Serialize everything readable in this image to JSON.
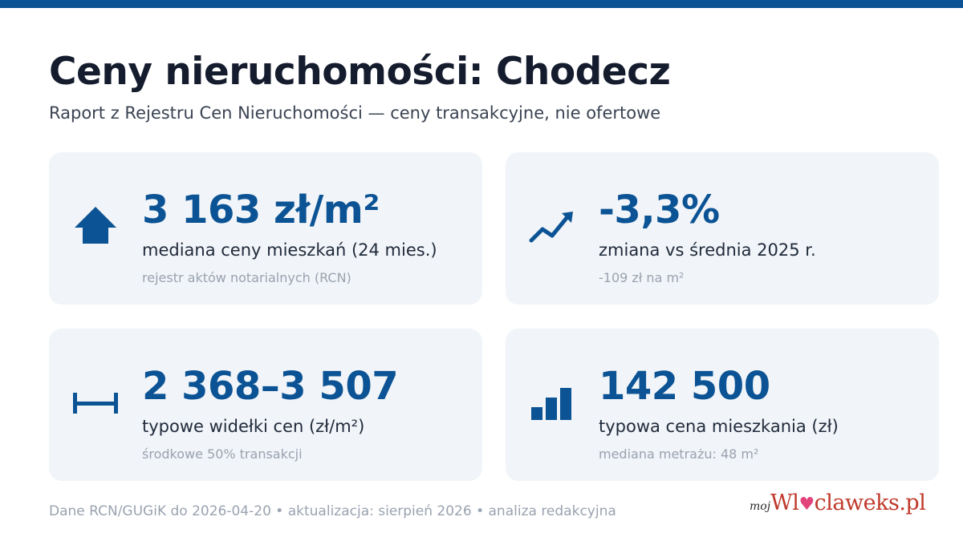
{
  "header": {
    "title": "Ceny nieruchomości: Chodecz",
    "subtitle": "Raport z Rejestru Cen Nieruchomości — ceny transakcyjne, nie ofertowe"
  },
  "cards": [
    {
      "icon": "house-icon",
      "value": "3 163 zł/m²",
      "label": "mediana ceny mieszkań (24 mies.)",
      "note": "rejestr aktów notarialnych (RCN)"
    },
    {
      "icon": "trend-up-icon",
      "value": "-3,3%",
      "label": "zmiana vs średnia 2025 r.",
      "note": "-109 zł na m²"
    },
    {
      "icon": "range-icon",
      "value": "2 368–3 507",
      "label": "typowe widełki cen (zł/m²)",
      "note": "środkowe 50% transakcji"
    },
    {
      "icon": "bar-chart-icon",
      "value": "142 500",
      "label": "typowa cena mieszkania (zł)",
      "note": "mediana metrażu: 48 m²"
    }
  ],
  "footer": {
    "text": "Dane RCN/GUGiK do 2026-04-20 • aktualizacja: sierpień 2026 • analiza redakcyjna"
  },
  "logo": {
    "prefix": "moj",
    "main_start": "Wl",
    "main_end": "claweks.pl",
    "text": "mojWloclawek.pl"
  },
  "colors": {
    "accent": "#0b5394",
    "card_bg": "#f1f4f8",
    "title": "#141c2e",
    "muted": "#9aa3b0",
    "logo_red": "#c0392b"
  }
}
